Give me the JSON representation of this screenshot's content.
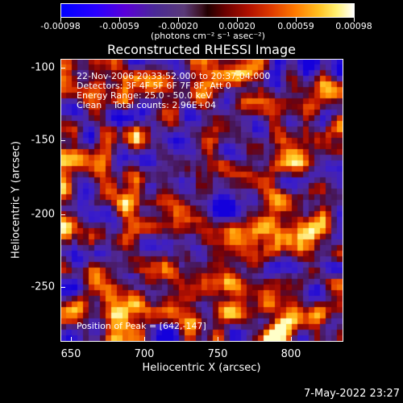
{
  "colorbar": {
    "ticks": [
      "-0.00098",
      "-0.00059",
      "-0.00020",
      "0.00020",
      "0.00059",
      "0.00098"
    ],
    "units": "(photons cm⁻² s⁻¹ asec⁻²)"
  },
  "title": "Reconstructed RHESSI Image",
  "info": {
    "time": "22-Nov-2006 20:33:52.000 to 20:37:04.000",
    "detectors": "Detectors: 3F 4F 5F 6F 7F 8F, Att 0",
    "energy": "Energy Range: 25.0 - 50.0 keV",
    "clean": "Clean    Total counts: 2.96E+04",
    "peak": "Position of Peak = [642,-147]"
  },
  "axes": {
    "xlabel": "Heliocentric X (arcsec)",
    "ylabel": "Heliocentric Y (arcsec)",
    "xticks": [
      "650",
      "700",
      "750",
      "800"
    ],
    "yticks": [
      "-100",
      "-150",
      "-200",
      "-250"
    ]
  },
  "timestamp": "7-May-2022 23:27"
}
